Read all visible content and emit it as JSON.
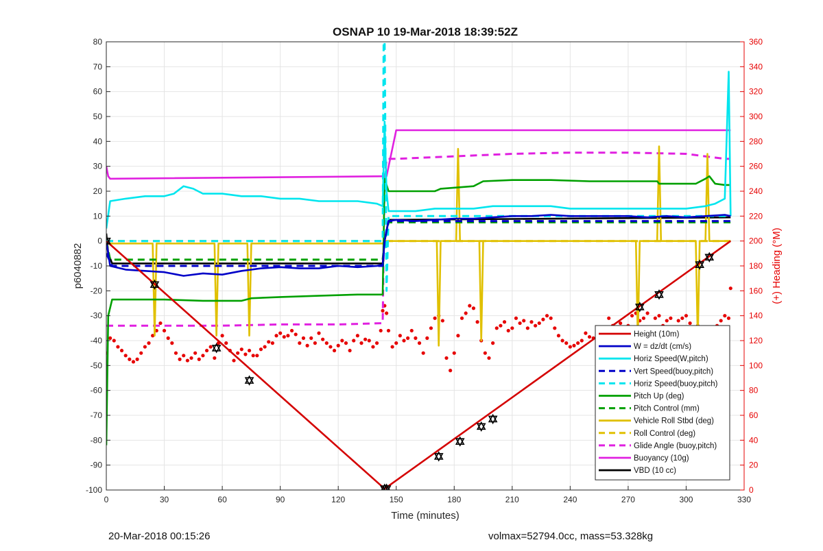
{
  "chart_data": {
    "type": "line",
    "title": "OSNAP 10 19-Mar-2018 18:39:52Z",
    "xlabel": "Time (minutes)",
    "ylabel_left": "p6040882",
    "ylabel_right": "(+) Heading (°M)",
    "xlim": [
      0,
      330
    ],
    "ylim_left": [
      -100,
      80
    ],
    "ylim_right": [
      0,
      360
    ],
    "x_ticks": [
      0,
      30,
      60,
      90,
      120,
      150,
      180,
      210,
      240,
      270,
      300,
      330
    ],
    "y_ticks_left": [
      -100,
      -90,
      -80,
      -70,
      -60,
      -50,
      -40,
      -30,
      -20,
      -10,
      0,
      10,
      20,
      30,
      40,
      50,
      60,
      70,
      80
    ],
    "y_ticks_right": [
      0,
      20,
      40,
      60,
      80,
      100,
      120,
      140,
      160,
      180,
      200,
      220,
      240,
      260,
      280,
      300,
      320,
      340,
      360
    ],
    "grid": true,
    "legend_position": "lower-right",
    "series": [
      {
        "name": "Height (10m)",
        "color": "#d40000",
        "style": "solid",
        "x": [
          0,
          144,
          323
        ],
        "y": [
          0,
          -99.5,
          0
        ]
      },
      {
        "name": "W = dz/dt (cm/s)",
        "color": "#0000c8",
        "style": "solid",
        "x": [
          0,
          2,
          10,
          20,
          30,
          40,
          50,
          60,
          70,
          80,
          90,
          100,
          110,
          120,
          130,
          140,
          143,
          144,
          146,
          150,
          160,
          170,
          180,
          190,
          200,
          210,
          220,
          230,
          240,
          250,
          260,
          270,
          280,
          290,
          300,
          310,
          320,
          323
        ],
        "y": [
          0,
          -10,
          -11.5,
          -12,
          -12.5,
          -14,
          -13,
          -13.5,
          -12,
          -11,
          -10.5,
          -11,
          -11,
          -10,
          -10.5,
          -10,
          -9.5,
          0,
          8,
          8.5,
          8,
          8.5,
          9,
          9,
          9.5,
          10,
          10,
          10.5,
          10,
          10,
          10,
          10,
          9.5,
          10,
          9.5,
          10,
          10.5,
          10
        ]
      },
      {
        "name": "Horiz Speed(W,pitch)",
        "color": "#00e5ee",
        "style": "solid",
        "x": [
          0,
          2,
          10,
          20,
          30,
          35,
          40,
          45,
          50,
          60,
          70,
          80,
          90,
          100,
          110,
          120,
          130,
          140,
          143,
          144,
          145,
          146,
          150,
          160,
          170,
          180,
          190,
          200,
          210,
          220,
          230,
          240,
          250,
          260,
          270,
          280,
          290,
          300,
          310,
          315,
          320,
          322,
          323
        ],
        "y": [
          5,
          16,
          17,
          18,
          18,
          19,
          22,
          21,
          19,
          19,
          18,
          18,
          17,
          17,
          16,
          16,
          16,
          15,
          14,
          48,
          20,
          12,
          12,
          12,
          13,
          13,
          13,
          14,
          14,
          14,
          14,
          13,
          13,
          13,
          13,
          13,
          13,
          13,
          14,
          15,
          17,
          68,
          10
        ]
      },
      {
        "name": "Vert Speed(buoy,pitch)",
        "color": "#0000c8",
        "style": "dashed",
        "x": [
          0,
          3,
          143,
          144,
          146,
          323
        ],
        "y": [
          -5,
          -10,
          -10,
          0,
          8,
          8
        ]
      },
      {
        "name": "Horiz Speed(buoy,pitch)",
        "color": "#00e5ee",
        "style": "dashed",
        "x": [
          0,
          143,
          143.5,
          144,
          145,
          146,
          323
        ],
        "y": [
          0,
          0,
          80,
          80,
          -20,
          10,
          10
        ]
      },
      {
        "name": "Pitch Up (deg)",
        "color": "#00a000",
        "style": "solid",
        "x": [
          0,
          1,
          3,
          10,
          30,
          50,
          70,
          75,
          90,
          110,
          130,
          143,
          144,
          146,
          150,
          170,
          173,
          190,
          195,
          210,
          230,
          250,
          270,
          285,
          286,
          300,
          305,
          310,
          312,
          315,
          320,
          323
        ],
        "y": [
          -82,
          -30,
          -23.5,
          -23.5,
          -23.5,
          -24,
          -24,
          -23,
          -22.5,
          -22,
          -21.5,
          -21.5,
          25,
          20,
          20,
          20,
          21,
          22,
          24,
          24.5,
          24.5,
          24,
          24,
          24,
          23,
          23,
          23,
          25,
          26,
          23,
          22.5,
          22.5
        ]
      },
      {
        "name": "Pitch Control (mm)",
        "color": "#00a000",
        "style": "dashed",
        "x": [
          0,
          2,
          143,
          144,
          146,
          323
        ],
        "y": [
          0,
          -7.5,
          -7.5,
          0,
          7.5,
          7.5
        ]
      },
      {
        "name": "Vehicle Roll Stbd (deg)",
        "color": "#e0c000",
        "style": "solid",
        "x": [
          0,
          24,
          25,
          26,
          56,
          57,
          58,
          73,
          74,
          75,
          143,
          144,
          145,
          150,
          171,
          172,
          173,
          181,
          182,
          183,
          193,
          194,
          195,
          200,
          230,
          274,
          275,
          276,
          285,
          286,
          287,
          305,
          306,
          307,
          310,
          311,
          312,
          320,
          323
        ],
        "y": [
          -1,
          -1,
          -38,
          -1,
          -1,
          -38,
          -1,
          -1,
          -38,
          -1,
          -1,
          0,
          0,
          0,
          0,
          -42,
          0,
          0,
          37,
          0,
          0,
          -40,
          0,
          0,
          0,
          0,
          -40,
          0,
          0,
          38,
          0,
          0,
          -40,
          0,
          0,
          35,
          0,
          0,
          0
        ]
      },
      {
        "name": "Roll Control (deg)",
        "color": "#e0c000",
        "style": "dashed",
        "x": [
          0,
          143,
          144,
          323
        ],
        "y": [
          0,
          0,
          0,
          0
        ]
      },
      {
        "name": "Glide Angle (buoy,pitch)",
        "color": "#e020e0",
        "style": "dashed",
        "x": [
          0,
          30,
          60,
          90,
          120,
          143,
          144,
          145,
          150,
          180,
          210,
          240,
          270,
          300,
          320,
          323
        ],
        "y": [
          -34,
          -34,
          -34,
          -33.5,
          -33.5,
          -33,
          25,
          33,
          33,
          34,
          35,
          35.5,
          35.5,
          35,
          33,
          33
        ]
      },
      {
        "name": "Buoyancy (10g)",
        "color": "#e020e0",
        "style": "solid",
        "x": [
          0,
          1,
          2,
          143,
          145,
          150,
          322,
          323
        ],
        "y": [
          30,
          26,
          25,
          26,
          26,
          44.5,
          44.5,
          44.5
        ]
      },
      {
        "name": "VBD (10 cc)",
        "color": "#000000",
        "style": "solid",
        "x": [
          0,
          1,
          3,
          143,
          144,
          146,
          323
        ],
        "y": [
          3,
          -5,
          -9,
          -9,
          0,
          8.5,
          9.5
        ]
      }
    ],
    "heading": {
      "name": "Heading",
      "color": "#e60000",
      "axis": "right",
      "x": [
        0,
        2,
        4,
        6,
        8,
        10,
        12,
        14,
        16,
        18,
        20,
        22,
        24,
        26,
        28,
        30,
        32,
        34,
        36,
        38,
        40,
        42,
        44,
        46,
        48,
        50,
        52,
        54,
        56,
        58,
        60,
        62,
        64,
        66,
        68,
        70,
        72,
        74,
        76,
        78,
        80,
        82,
        84,
        86,
        88,
        90,
        92,
        94,
        96,
        98,
        100,
        102,
        104,
        106,
        108,
        110,
        112,
        114,
        116,
        118,
        120,
        122,
        124,
        126,
        128,
        130,
        132,
        134,
        136,
        138,
        140,
        142,
        143,
        144,
        145,
        146,
        148,
        150,
        152,
        154,
        156,
        158,
        160,
        162,
        164,
        166,
        168,
        170,
        172,
        174,
        176,
        178,
        180,
        182,
        184,
        186,
        188,
        190,
        192,
        194,
        196,
        198,
        200,
        202,
        204,
        206,
        208,
        210,
        212,
        214,
        216,
        218,
        220,
        222,
        224,
        226,
        228,
        230,
        232,
        234,
        236,
        238,
        240,
        242,
        244,
        246,
        248,
        250,
        252,
        254,
        256,
        258,
        260,
        262,
        264,
        266,
        268,
        270,
        272,
        274,
        276,
        278,
        280,
        282,
        284,
        286,
        288,
        290,
        292,
        294,
        296,
        298,
        300,
        302,
        304,
        306,
        308,
        310,
        312,
        314,
        316,
        318,
        320,
        322,
        323
      ],
      "y": [
        110,
        122,
        120,
        115,
        112,
        108,
        105,
        103,
        105,
        110,
        115,
        118,
        124,
        128,
        134,
        128,
        122,
        118,
        110,
        105,
        108,
        104,
        106,
        110,
        105,
        108,
        112,
        115,
        106,
        118,
        124,
        118,
        112,
        104,
        110,
        113,
        109,
        112,
        108,
        108,
        113,
        115,
        119,
        118,
        124,
        126,
        123,
        124,
        128,
        125,
        118,
        122,
        116,
        122,
        118,
        126,
        121,
        118,
        115,
        112,
        116,
        120,
        118,
        112,
        120,
        124,
        118,
        121,
        120,
        115,
        118,
        128,
        144,
        148,
        142,
        128,
        115,
        118,
        124,
        120,
        122,
        128,
        122,
        118,
        110,
        122,
        130,
        138,
        140,
        136,
        106,
        96,
        110,
        124,
        138,
        142,
        148,
        146,
        135,
        120,
        110,
        106,
        118,
        130,
        132,
        135,
        128,
        130,
        138,
        134,
        136,
        130,
        135,
        132,
        134,
        137,
        140,
        138,
        130,
        124,
        120,
        118,
        115,
        116,
        118,
        120,
        126,
        123,
        122,
        128,
        124,
        130,
        138,
        132,
        126,
        134,
        128,
        132,
        140,
        142,
        136,
        138,
        142,
        130,
        138,
        140,
        132,
        136,
        138,
        130,
        136,
        138,
        140,
        134,
        130,
        132,
        128,
        125,
        124,
        128,
        132,
        136,
        140,
        138,
        162
      ]
    },
    "markers": {
      "name": "dive markers",
      "color": "#000000",
      "x": [
        0,
        25,
        57,
        74,
        144,
        145,
        172,
        183,
        194,
        200,
        276,
        286,
        307,
        312
      ],
      "y": [
        0,
        -17.5,
        -43,
        -56,
        -99.5,
        -99.5,
        -86.5,
        -80.5,
        -74.5,
        -71.5,
        -26.5,
        -21.5,
        -9.5,
        -6.5
      ]
    }
  },
  "footer": {
    "left": "20-Mar-2018 00:15:26",
    "right": "volmax=52794.0cc, mass=53.328kg"
  }
}
